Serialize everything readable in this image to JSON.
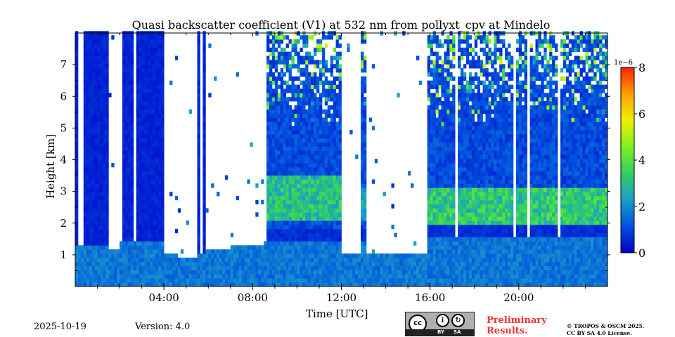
{
  "chart_data": {
    "type": "heatmap",
    "title": "Quasi backscatter coefficient (V1) at 532 nm from pollyxt_cpv at Mindelo",
    "xlabel": "Time [UTC]",
    "ylabel": "Height [km]",
    "xlim_hours": [
      0,
      24
    ],
    "ylim_km": [
      0,
      8
    ],
    "xticks": [
      {
        "v": 4,
        "label": "04:00"
      },
      {
        "v": 8,
        "label": "08:00"
      },
      {
        "v": 12,
        "label": "12:00"
      },
      {
        "v": 16,
        "label": "16:00"
      },
      {
        "v": 20,
        "label": "20:00"
      }
    ],
    "yticks": [
      {
        "v": 1,
        "label": "1"
      },
      {
        "v": 2,
        "label": "2"
      },
      {
        "v": 3,
        "label": "3"
      },
      {
        "v": 4,
        "label": "4"
      },
      {
        "v": 5,
        "label": "5"
      },
      {
        "v": 6,
        "label": "6"
      },
      {
        "v": 7,
        "label": "7"
      }
    ],
    "colorbar": {
      "range": [
        0,
        8
      ],
      "exponent_label": "1e−6",
      "ticks": [
        {
          "v": 0,
          "label": "0"
        },
        {
          "v": 2,
          "label": "2"
        },
        {
          "v": 4,
          "label": "4"
        },
        {
          "v": 6,
          "label": "6"
        },
        {
          "v": 8,
          "label": "8"
        }
      ],
      "colormap": [
        "#0000c8",
        "#0050e0",
        "#1a9fc8",
        "#30d060",
        "#80f020",
        "#f0f000",
        "#ffa000",
        "#ff2000"
      ]
    },
    "segments": [
      {
        "start": 0.0,
        "end": 1.5,
        "kind": "cloud",
        "bl_top": 1.2
      },
      {
        "start": 1.5,
        "end": 2.0,
        "kind": "clear",
        "bl_top": 1.1
      },
      {
        "start": 2.0,
        "end": 3.9,
        "kind": "cloud",
        "bl_top": 1.4
      },
      {
        "start": 3.9,
        "end": 4.6,
        "kind": "clear",
        "bl_top": 0.95
      },
      {
        "start": 4.6,
        "end": 5.5,
        "kind": "clear",
        "bl_top": 0.9
      },
      {
        "start": 5.5,
        "end": 5.8,
        "kind": "cloud",
        "bl_top": 1.0
      },
      {
        "start": 5.8,
        "end": 7.0,
        "kind": "clear",
        "bl_top": 1.05
      },
      {
        "start": 7.0,
        "end": 8.4,
        "kind": "clear",
        "bl_top": 1.2
      },
      {
        "start": 8.4,
        "end": 11.9,
        "kind": "noisy",
        "bl_top": 1.3,
        "layer": [
          2.0,
          3.4
        ],
        "layer_value": 3.2
      },
      {
        "start": 11.9,
        "end": 12.8,
        "kind": "clear",
        "bl_top": 1.0
      },
      {
        "start": 12.8,
        "end": 13.1,
        "kind": "noisy",
        "bl_top": 1.3,
        "layer": [
          2.0,
          3.0
        ],
        "layer_value": 2.5
      },
      {
        "start": 13.1,
        "end": 15.8,
        "kind": "clear",
        "bl_top": 1.0
      },
      {
        "start": 15.8,
        "end": 24.0,
        "kind": "noisy",
        "bl_top": 1.5,
        "layer": [
          1.7,
          3.0
        ],
        "layer_value": 3.4
      }
    ]
  },
  "footer": {
    "date": "2025-10-19",
    "version": "Version: 4.0",
    "license_badge": {
      "cc": "cc",
      "by": "BY",
      "sa": "SA"
    },
    "preliminary": "Preliminary Results.",
    "copyright_line1": "© TROPOS & OSCM 2025.",
    "copyright_line2": "CC BY SA 4.0 License."
  }
}
